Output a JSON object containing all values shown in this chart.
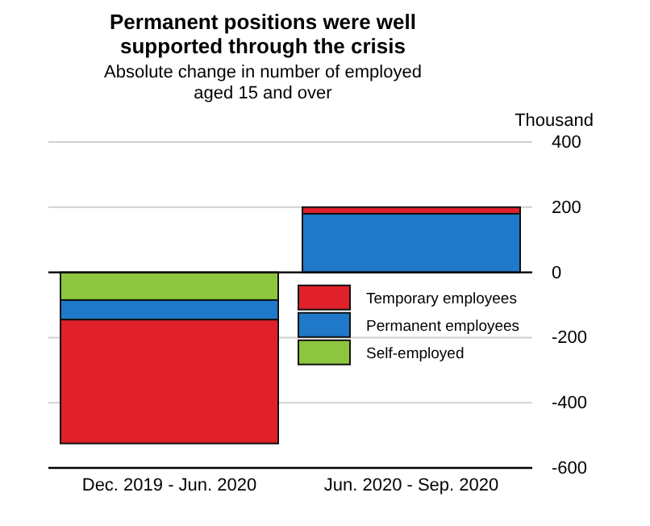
{
  "chart_data": {
    "type": "bar",
    "title": "Permanent positions were well supported through the crisis",
    "subtitle": "Absolute change in number of employed aged 15 and over",
    "ylabel": "Thousand",
    "categories": [
      "Dec. 2019 - Jun. 2020",
      "Jun. 2020 - Sep. 2020"
    ],
    "series": [
      {
        "name": "Self-employed",
        "color": "#8cc63f",
        "values": [
          -85,
          0
        ]
      },
      {
        "name": "Permanent employees",
        "color": "#1f78c8",
        "values": [
          -60,
          180
        ]
      },
      {
        "name": "Temporary employees",
        "color": "#e0202a",
        "values": [
          -380,
          20
        ]
      }
    ],
    "stacked": true,
    "ylim": [
      -600,
      400
    ],
    "yticks": [
      -600,
      -400,
      -200,
      0,
      200,
      400
    ],
    "grid": "y",
    "legend": "right"
  }
}
